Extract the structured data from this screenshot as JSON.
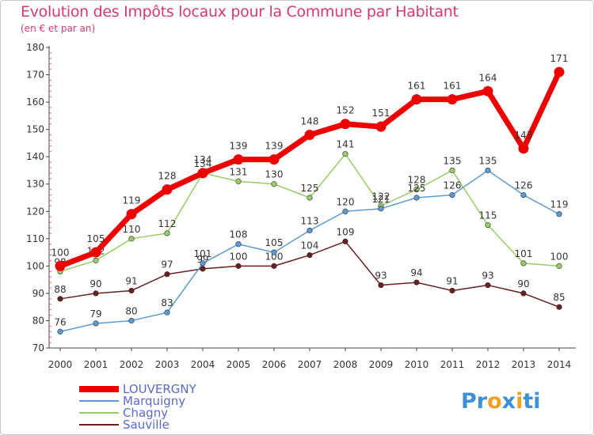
{
  "title": "Evolution des Impôts locaux pour la Commune par Habitant",
  "subtitle": "(en € et par an)",
  "logo": {
    "parts": [
      "Pr",
      "o",
      "x",
      "i",
      "ti"
    ],
    "colors": [
      "#3d8fd6",
      "#f0a020",
      "#3d8fd6",
      "#f0a020",
      "#3d8fd6"
    ]
  },
  "chart_data": {
    "type": "line",
    "title": "Evolution des Impôts locaux pour la Commune par Habitant",
    "subtitle": "(en € et par an)",
    "xlabel": "",
    "ylabel": "",
    "x": [
      "2000",
      "2001",
      "2002",
      "2003",
      "2004",
      "2005",
      "2006",
      "2007",
      "2008",
      "2009",
      "2010",
      "2011",
      "2012",
      "2013",
      "2014"
    ],
    "yticks": [
      "70",
      "80",
      "90",
      "100",
      "110",
      "120",
      "130",
      "140",
      "150",
      "160",
      "170",
      "180"
    ],
    "ylim": [
      70,
      180
    ],
    "grid": false,
    "legend": "bottom-left",
    "series": [
      {
        "name": "Sauville",
        "color": "#6b1e1e",
        "width": 1.5,
        "values": [
          88,
          90,
          91,
          97,
          99,
          100,
          100,
          104,
          109,
          93,
          94,
          91,
          93,
          90,
          85
        ],
        "labels": [
          "88",
          "90",
          "91",
          "97",
          "99",
          "100",
          "100",
          "104",
          "109",
          "93",
          "94",
          "91",
          "93",
          "90",
          "85"
        ]
      },
      {
        "name": "Chagny",
        "color": "#99cc66",
        "width": 1.5,
        "values": [
          98,
          102,
          110,
          112,
          134,
          131,
          130,
          125,
          141,
          122,
          128,
          135,
          115,
          101,
          100
        ],
        "labels": [
          "98",
          "102",
          "110",
          "112",
          "134",
          "131",
          "130",
          "125",
          "141",
          "122",
          "128",
          "135",
          "115",
          "101",
          "100"
        ]
      },
      {
        "name": "Marquigny",
        "color": "#5b9bd5",
        "width": 1.5,
        "values": [
          76,
          79,
          80,
          83,
          101,
          108,
          105,
          113,
          120,
          121,
          125,
          126,
          135,
          126,
          119
        ],
        "labels": [
          "76",
          "79",
          "80",
          "83",
          "101",
          "108",
          "105",
          "113",
          "120",
          "121",
          "125",
          "126",
          "135",
          "126",
          "119"
        ]
      },
      {
        "name": "LOUVERGNY",
        "color": "#ee0000",
        "width": 7,
        "values": [
          100,
          105,
          119,
          128,
          134,
          139,
          139,
          148,
          152,
          151,
          161,
          161,
          164,
          143,
          171
        ],
        "labels": [
          "100",
          "105",
          "119",
          "128",
          "134",
          "139",
          "139",
          "148",
          "152",
          "151",
          "161",
          "161",
          "164",
          "143",
          "171"
        ]
      }
    ],
    "legend_order": [
      "LOUVERGNY",
      "Marquigny",
      "Chagny",
      "Sauville"
    ]
  }
}
